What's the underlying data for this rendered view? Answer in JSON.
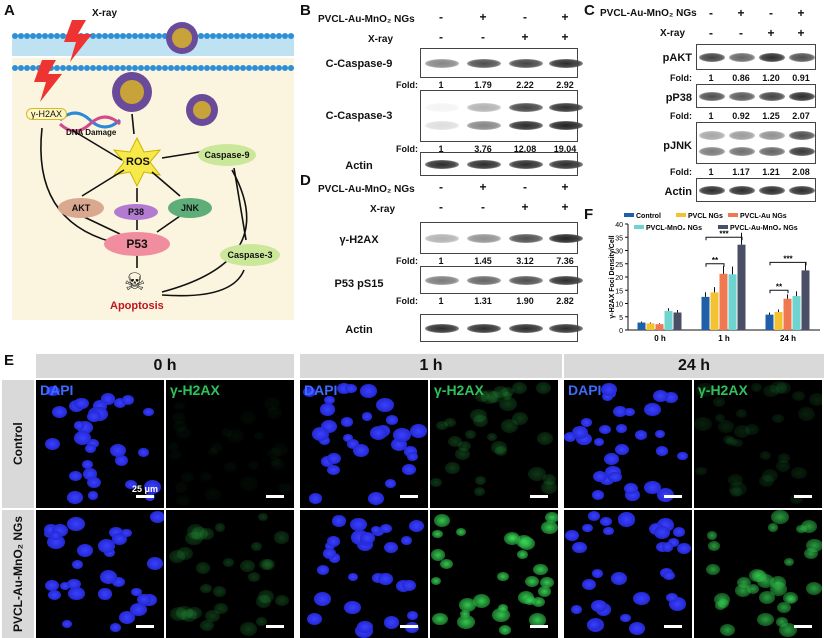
{
  "panels": {
    "A": "A",
    "B": "B",
    "C": "C",
    "D": "D",
    "E": "E",
    "F": "F"
  },
  "schematic": {
    "xray": "X-ray",
    "h2ax": "γ-H2AX",
    "dna_damage": "DNA Damage",
    "ros": "ROS",
    "caspase9": "Caspase-9",
    "caspase3": "Caspase-3",
    "akt": "AKT",
    "p38": "P38",
    "jnk": "JNK",
    "p53": "P53",
    "apoptosis": "Apoptosis"
  },
  "blot_b": {
    "treat1": "PVCL-Au-MnO₂ NGs",
    "treat2": "X-ray",
    "signs1": [
      "-",
      "+",
      "-",
      "+"
    ],
    "signs2": [
      "-",
      "-",
      "+",
      "+"
    ],
    "rows": [
      {
        "label": "C-Caspase-9",
        "fold_label": "Fold:",
        "folds": [
          "1",
          "1.79",
          "2.22",
          "2.92"
        ]
      },
      {
        "label": "C-Caspase-3",
        "fold_label": "Fold:",
        "folds": [
          "1",
          "3.76",
          "12.08",
          "19.04"
        ]
      },
      {
        "label": "Actin"
      }
    ]
  },
  "blot_c": {
    "treat1": "PVCL-Au-MnO₂ NGs",
    "treat2": "X-ray",
    "signs1": [
      "-",
      "+",
      "-",
      "+"
    ],
    "signs2": [
      "-",
      "-",
      "+",
      "+"
    ],
    "rows": [
      {
        "label": "pAKT",
        "fold_label": "Fold:",
        "folds": [
          "1",
          "0.86",
          "1.20",
          "0.91"
        ]
      },
      {
        "label": "pP38",
        "fold_label": "Fold:",
        "folds": [
          "1",
          "0.92",
          "1.25",
          "2.07"
        ]
      },
      {
        "label": "pJNK",
        "fold_label": "Fold:",
        "folds": [
          "1",
          "1.17",
          "1.21",
          "2.08"
        ]
      },
      {
        "label": "Actin"
      }
    ]
  },
  "blot_d": {
    "treat1": "PVCL-Au-MnO₂ NGs",
    "treat2": "X-ray",
    "signs1": [
      "-",
      "+",
      "-",
      "+"
    ],
    "signs2": [
      "-",
      "-",
      "+",
      "+"
    ],
    "rows": [
      {
        "label": "γ-H2AX",
        "fold_label": "Fold:",
        "folds": [
          "1",
          "1.45",
          "3.12",
          "7.36"
        ]
      },
      {
        "label": "P53 pS15",
        "fold_label": "Fold:",
        "folds": [
          "1",
          "1.31",
          "1.90",
          "2.82"
        ]
      },
      {
        "label": "Actin"
      }
    ]
  },
  "microscopy": {
    "times": [
      "0 h",
      "1 h",
      "24 h"
    ],
    "channels": [
      "DAPI",
      "γ-H2AX"
    ],
    "rows": [
      "Control",
      "PVCL-Au-MnO₂ NGs"
    ],
    "scale": "25 μm"
  },
  "chart_data": {
    "type": "bar",
    "ylabel": "γ-H2AX Foci Density/Cell",
    "categories": [
      "0 h",
      "1 h",
      "24 h"
    ],
    "ylim": [
      0,
      40
    ],
    "yticks": [
      0,
      5,
      10,
      15,
      20,
      25,
      30,
      35,
      40
    ],
    "series": [
      {
        "name": "Control",
        "color": "#1f5fa8",
        "values": [
          2.8,
          12.5,
          5.8
        ]
      },
      {
        "name": "PVCL NGs",
        "color": "#f2c230",
        "values": [
          2.5,
          14.2,
          6.8
        ]
      },
      {
        "name": "PVCL-Au NGs",
        "color": "#f07850",
        "values": [
          2.2,
          21.2,
          11.8
        ]
      },
      {
        "name": "PVCL-MnO₂ NGs",
        "color": "#6fd3cf",
        "values": [
          7.2,
          21.0,
          12.8
        ]
      },
      {
        "name": "PVCL-Au-MnO₂ NGs",
        "color": "#4a4f66",
        "values": [
          6.6,
          32.2,
          22.5
        ]
      }
    ],
    "significance": [
      "**",
      "***",
      "**",
      "***"
    ]
  }
}
